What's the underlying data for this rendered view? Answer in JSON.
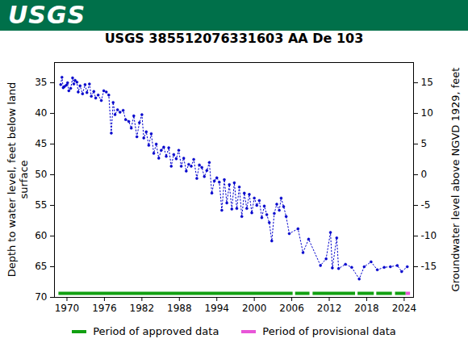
{
  "chart_data": {
    "type": "line",
    "logo": "USGS",
    "title": "USGS 385512076331603 AA De 103",
    "ylabel": [
      "Depth to water level, feet below land",
      "surface"
    ],
    "y2label": "Groundwater level above NGVD 1929, feet",
    "color": "#0000cc",
    "marker": "dot",
    "line_style": "dotted",
    "grid": false,
    "xlim": [
      1968,
      2025.5
    ],
    "xticks": [
      1970,
      1976,
      1982,
      1988,
      1994,
      2000,
      2006,
      2012,
      2018,
      2024
    ],
    "ylim": [
      31.7,
      70
    ],
    "yticks": [
      35,
      40,
      45,
      50,
      55,
      60,
      65,
      70
    ],
    "y2lim": [
      -20,
      18.3
    ],
    "y2ticks": [
      -15,
      -10,
      -5,
      0,
      5,
      10,
      15
    ],
    "x": [
      1969.0,
      1969.2,
      1969.4,
      1969.6,
      1969.9,
      1970.1,
      1970.3,
      1970.6,
      1970.9,
      1971.1,
      1971.3,
      1971.6,
      1971.8,
      1972.1,
      1972.5,
      1972.9,
      1973.2,
      1973.6,
      1973.9,
      1974.3,
      1974.6,
      1975.0,
      1975.5,
      1975.9,
      1976.3,
      1976.7,
      1977.1,
      1977.4,
      1977.7,
      1978.1,
      1978.5,
      1979.0,
      1979.4,
      1979.9,
      1980.3,
      1980.7,
      1981.2,
      1981.6,
      1982.0,
      1982.3,
      1982.7,
      1983.1,
      1983.5,
      1983.9,
      1984.3,
      1984.7,
      1985.1,
      1985.5,
      1985.9,
      1986.3,
      1986.7,
      1987.1,
      1987.5,
      1987.9,
      1988.3,
      1988.7,
      1989.1,
      1989.5,
      1989.9,
      1990.3,
      1990.8,
      1991.2,
      1991.6,
      1992.0,
      1992.4,
      1992.8,
      1993.2,
      1993.6,
      1994.0,
      1994.4,
      1994.8,
      1995.2,
      1995.6,
      1996.0,
      1996.4,
      1996.8,
      1997.2,
      1997.6,
      1998.0,
      1998.4,
      1998.8,
      1999.2,
      1999.6,
      2000.0,
      2000.4,
      2000.8,
      2001.2,
      2001.6,
      2002.0,
      2002.4,
      2002.8,
      2003.2,
      2003.6,
      2004.0,
      2004.3,
      2004.7,
      2005.1,
      2005.6,
      2007.0,
      2007.8,
      2008.7,
      2010.6,
      2011.5,
      2012.2,
      2012.5,
      2013.2,
      2013.5,
      2014.6,
      2015.6,
      2016.8,
      2017.6,
      2018.7,
      2019.7,
      2020.8,
      2021.8,
      2022.9,
      2023.6,
      2024.5
    ],
    "values": [
      35.3,
      34.1,
      35.8,
      35.6,
      35.4,
      35.0,
      36.3,
      35.9,
      34.2,
      35.2,
      34.6,
      34.9,
      36.5,
      35.5,
      36.8,
      35.3,
      36.6,
      35.2,
      37.2,
      36.4,
      37.5,
      37.0,
      37.9,
      36.3,
      36.5,
      37.0,
      43.2,
      38.2,
      40.2,
      39.4,
      39.8,
      39.5,
      41.0,
      41.3,
      42.4,
      40.4,
      43.8,
      41.5,
      40.2,
      44.0,
      43.0,
      45.2,
      43.3,
      46.5,
      45.0,
      47.3,
      46.0,
      45.5,
      47.0,
      45.6,
      48.6,
      46.7,
      47.4,
      46.0,
      48.6,
      47.3,
      49.4,
      48.3,
      48.6,
      47.5,
      50.6,
      48.4,
      48.8,
      50.3,
      49.3,
      48.0,
      53.0,
      51.0,
      50.5,
      51.2,
      55.8,
      50.8,
      54.6,
      51.6,
      55.6,
      51.3,
      55.5,
      52.0,
      56.8,
      53.0,
      55.5,
      53.2,
      56.2,
      53.8,
      55.0,
      54.2,
      57.0,
      55.1,
      56.5,
      57.8,
      60.8,
      56.3,
      54.8,
      55.8,
      53.8,
      55.2,
      56.8,
      59.6,
      58.8,
      62.7,
      60.5,
      64.8,
      63.7,
      59.4,
      65.2,
      60.3,
      65.3,
      64.6,
      65.1,
      67.0,
      65.0,
      64.2,
      65.5,
      65.1,
      65.0,
      64.8,
      65.8,
      65.0
    ],
    "periods": [
      {
        "name": "Period of approved data",
        "color": "#11a011",
        "ranges": [
          [
            1968.7,
            2006.2
          ],
          [
            2006.6,
            2008.9
          ],
          [
            2009.4,
            2016.2
          ],
          [
            2016.6,
            2019.2
          ],
          [
            2019.6,
            2022.1
          ],
          [
            2022.6,
            2024.3
          ]
        ]
      },
      {
        "name": "Period of provisional data",
        "color": "#e855d8",
        "ranges": [
          [
            2024.3,
            2025.0
          ]
        ]
      }
    ]
  }
}
